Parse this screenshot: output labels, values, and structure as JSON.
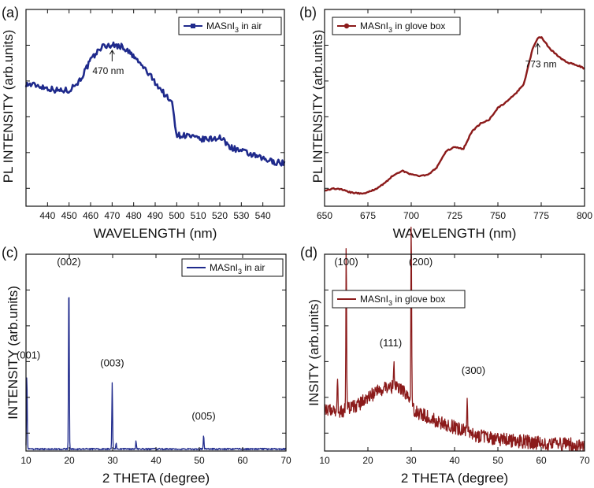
{
  "chart_data": [
    {
      "panel": "(a)",
      "type": "line",
      "title": "",
      "xlabel": "WAVELENGTH (nm)",
      "ylabel": "PL INTENSITY (arb.units)",
      "xlim": [
        430,
        550
      ],
      "ylim": [
        0,
        1
      ],
      "xticks": [
        440,
        450,
        460,
        470,
        480,
        490,
        500,
        510,
        520,
        530,
        540
      ],
      "y_tick_labels_shown": false,
      "legend": "top-right",
      "series": [
        {
          "name": "MASnI3 in air",
          "color": "#1f2a8c",
          "marker": "square",
          "x": [
            430,
            435,
            440,
            445,
            450,
            455,
            460,
            465,
            470,
            475,
            480,
            485,
            490,
            495,
            498,
            500,
            505,
            510,
            515,
            520,
            525,
            530,
            535,
            540,
            545,
            550
          ],
          "y": [
            0.62,
            0.615,
            0.6,
            0.588,
            0.59,
            0.64,
            0.74,
            0.81,
            0.82,
            0.81,
            0.76,
            0.7,
            0.63,
            0.56,
            0.52,
            0.36,
            0.36,
            0.34,
            0.34,
            0.35,
            0.3,
            0.28,
            0.26,
            0.24,
            0.225,
            0.22
          ]
        }
      ],
      "annotations": [
        {
          "text": "470 nm",
          "x": 470
        }
      ]
    },
    {
      "panel": "(b)",
      "type": "line",
      "title": "",
      "xlabel": "WAVELENGTH (nm)",
      "ylabel": "PL INTENSITY (arb.units)",
      "xlim": [
        650,
        800
      ],
      "ylim": [
        0,
        1
      ],
      "xticks": [
        650,
        675,
        700,
        725,
        750,
        775,
        800
      ],
      "y_tick_labels_shown": false,
      "legend": "top-left",
      "series": [
        {
          "name": "MASnI3 in glove box",
          "color": "#8b1a1a",
          "marker": "circle",
          "x": [
            650,
            655,
            660,
            665,
            670,
            675,
            680,
            685,
            690,
            695,
            700,
            705,
            710,
            715,
            720,
            725,
            730,
            735,
            740,
            745,
            750,
            755,
            760,
            765,
            770,
            773,
            775,
            780,
            785,
            790,
            795,
            800
          ],
          "y": [
            0.08,
            0.09,
            0.085,
            0.07,
            0.065,
            0.07,
            0.09,
            0.12,
            0.16,
            0.18,
            0.16,
            0.155,
            0.16,
            0.2,
            0.28,
            0.3,
            0.29,
            0.38,
            0.42,
            0.44,
            0.5,
            0.53,
            0.57,
            0.62,
            0.8,
            0.855,
            0.86,
            0.8,
            0.76,
            0.73,
            0.72,
            0.7
          ]
        }
      ],
      "annotations": [
        {
          "text": "773 nm",
          "x": 773
        }
      ]
    },
    {
      "panel": "(c)",
      "type": "line",
      "title": "",
      "xlabel": "2 THETA (degree)",
      "ylabel": "INTENSITY (arb.units)",
      "xlim": [
        10,
        70
      ],
      "ylim": [
        0,
        1
      ],
      "xticks": [
        10,
        20,
        30,
        40,
        50,
        60,
        70
      ],
      "y_tick_labels_shown": false,
      "legend": "top-right",
      "series": [
        {
          "name": "MASnI3 in air",
          "color": "#1f2a8c",
          "baseline": 0.01,
          "peaks": [
            [
              10.2,
              0.38
            ],
            [
              19.9,
              0.87
            ],
            [
              29.9,
              0.34
            ],
            [
              30.8,
              0.03
            ],
            [
              35.4,
              0.04
            ],
            [
              51.0,
              0.07
            ]
          ]
        }
      ],
      "annotations": [
        {
          "text": "(001)",
          "x": 10.2
        },
        {
          "text": "(002)",
          "x": 19.9
        },
        {
          "text": "(003)",
          "x": 29.9
        },
        {
          "text": "(005)",
          "x": 51.0
        }
      ]
    },
    {
      "panel": "(d)",
      "type": "line",
      "title": "",
      "xlabel": "2 THETA (degree)",
      "ylabel": "INSITY (arb.units)",
      "xlim": [
        10,
        70
      ],
      "ylim": [
        0,
        1
      ],
      "xticks": [
        10,
        20,
        30,
        40,
        50,
        60,
        70
      ],
      "y_tick_labels_shown": false,
      "legend": "top-right",
      "series": [
        {
          "name": "MASnI3 in glove box",
          "color": "#8b1a1a",
          "background": [
            [
              10,
              0.22
            ],
            [
              14,
              0.2
            ],
            [
              18,
              0.24
            ],
            [
              22,
              0.3
            ],
            [
              25,
              0.33
            ],
            [
              28,
              0.31
            ],
            [
              31,
              0.2
            ],
            [
              35,
              0.16
            ],
            [
              40,
              0.12
            ],
            [
              45,
              0.08
            ],
            [
              50,
              0.06
            ],
            [
              60,
              0.04
            ],
            [
              70,
              0.03
            ]
          ],
          "peaks": [
            [
              13.0,
              0.15
            ],
            [
              15.0,
              0.84
            ],
            [
              26.0,
              0.12
            ],
            [
              30.0,
              0.96
            ],
            [
              42.9,
              0.2
            ]
          ]
        }
      ],
      "annotations": [
        {
          "text": "(100)",
          "x": 15.0
        },
        {
          "text": "(111)",
          "x": 26.0
        },
        {
          "text": "(200)",
          "x": 30.0
        },
        {
          "text": "(300)",
          "x": 42.9
        }
      ]
    }
  ]
}
